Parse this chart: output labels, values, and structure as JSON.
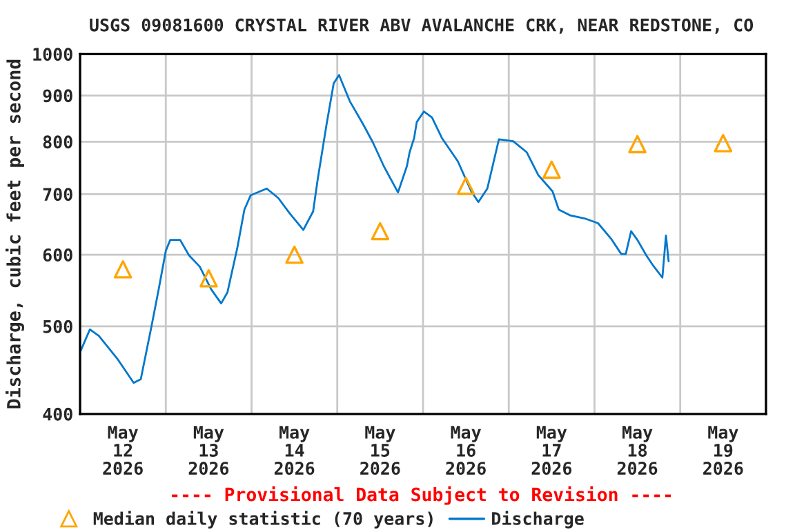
{
  "chart_data": {
    "type": "line",
    "title": "USGS 09081600 CRYSTAL RIVER ABV AVALANCHE CRK, NEAR REDSTONE, CO",
    "ylabel": "Discharge, cubic feet per second",
    "annotations": [
      "---- Provisional Data Subject to Revision ----"
    ],
    "log": "y",
    "xlim": [
      "2026-05-12T00:00",
      "2026-05-20T00:00"
    ],
    "xticks": [
      {
        "value": "2026-05-12T12:00",
        "label": "May\n12\n2026"
      },
      {
        "value": "2026-05-13T00:00",
        "label": null
      },
      {
        "value": "2026-05-13T12:00",
        "label": "May\n13\n2026"
      },
      {
        "value": "2026-05-14T00:00",
        "label": null
      },
      {
        "value": "2026-05-14T12:00",
        "label": "May\n14\n2026"
      },
      {
        "value": "2026-05-15T00:00",
        "label": null
      },
      {
        "value": "2026-05-15T12:00",
        "label": "May\n15\n2026"
      },
      {
        "value": "2026-05-16T00:00",
        "label": null
      },
      {
        "value": "2026-05-16T12:00",
        "label": "May\n16\n2026"
      },
      {
        "value": "2026-05-17T00:00",
        "label": null
      },
      {
        "value": "2026-05-17T12:00",
        "label": "May\n17\n2026"
      },
      {
        "value": "2026-05-18T00:00",
        "label": null
      },
      {
        "value": "2026-05-18T12:00",
        "label": "May\n18\n2026"
      },
      {
        "value": "2026-05-19T00:00",
        "label": null
      },
      {
        "value": "2026-05-19T12:00",
        "label": "May\n19\n2026"
      }
    ],
    "ylim": [
      400,
      1000
    ],
    "yticks": [
      400,
      500,
      600,
      700,
      800,
      900,
      1000
    ],
    "grid": true,
    "legend": "bottom",
    "series": [
      {
        "name": "Median daily statistic (70 years)",
        "type": "scatter",
        "marker": "triangle",
        "color": "#ffa500",
        "x": [
          "2026-05-12T12:00",
          "2026-05-13T12:00",
          "2026-05-14T12:00",
          "2026-05-15T12:00",
          "2026-05-16T12:00",
          "2026-05-17T12:00",
          "2026-05-18T12:00",
          "2026-05-19T12:00"
        ],
        "values": [
          578,
          565,
          600,
          637,
          715,
          745,
          795,
          797
        ]
      },
      {
        "name": "Discharge",
        "marker": "none",
        "color": "#0077cc",
        "x": [
          "2026-05-12T00:00",
          "2026-05-12T02:45",
          "2026-05-12T05:15",
          "2026-05-12T10:30",
          "2026-05-12T15:00",
          "2026-05-12T17:00",
          "2026-05-12T20:00",
          "2026-05-12T22:00",
          "2026-05-13T00:00",
          "2026-05-13T01:15",
          "2026-05-13T04:00",
          "2026-05-13T06:30",
          "2026-05-13T09:30",
          "2026-05-13T12:45",
          "2026-05-13T15:30",
          "2026-05-13T17:15",
          "2026-05-13T20:00",
          "2026-05-13T22:00",
          "2026-05-13T23:45",
          "2026-05-14T04:15",
          "2026-05-14T07:30",
          "2026-05-14T10:45",
          "2026-05-14T14:30",
          "2026-05-14T17:15",
          "2026-05-14T18:30",
          "2026-05-14T21:00",
          "2026-05-14T23:00",
          "2026-05-15T00:30",
          "2026-05-15T03:30",
          "2026-05-15T07:15",
          "2026-05-15T10:00",
          "2026-05-15T13:00",
          "2026-05-15T17:00",
          "2026-05-15T19:30",
          "2026-05-15T20:15",
          "2026-05-15T21:30",
          "2026-05-15T22:15",
          "2026-05-16T00:15",
          "2026-05-16T02:30",
          "2026-05-16T05:15",
          "2026-05-16T09:45",
          "2026-05-16T13:30",
          "2026-05-16T15:30",
          "2026-05-16T18:00",
          "2026-05-16T21:15",
          "2026-05-17T01:15",
          "2026-05-17T05:00",
          "2026-05-17T08:15",
          "2026-05-17T12:15",
          "2026-05-17T14:00",
          "2026-05-17T17:15",
          "2026-05-17T21:15",
          "2026-05-18T01:00",
          "2026-05-18T04:45",
          "2026-05-18T07:30",
          "2026-05-18T08:45",
          "2026-05-18T10:15",
          "2026-05-18T12:00",
          "2026-05-18T14:30",
          "2026-05-18T16:30",
          "2026-05-18T19:00",
          "2026-05-18T20:00",
          "2026-05-18T20:45"
        ],
        "values": [
          468,
          496,
          488,
          460,
          433,
          437,
          500,
          549,
          606,
          623,
          623,
          599,
          582,
          549,
          530,
          545,
          610,
          673,
          698,
          710,
          693,
          666,
          639,
          670,
          726,
          836,
          928,
          948,
          887,
          836,
          798,
          752,
          703,
          752,
          779,
          807,
          841,
          864,
          851,
          808,
          761,
          705,
          686,
          710,
          805,
          801,
          779,
          735,
          705,
          673,
          663,
          658,
          650,
          624,
          601,
          601,
          637,
          623,
          599,
          583,
          566,
          630,
          590
        ]
      }
    ]
  }
}
